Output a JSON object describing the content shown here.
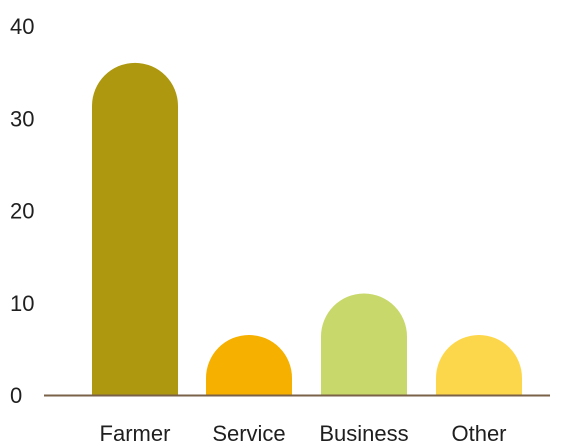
{
  "chart_data": {
    "type": "bar",
    "title": "",
    "xlabel": "",
    "ylabel": "",
    "categories": [
      "Farmer",
      "Service",
      "Business",
      "Other"
    ],
    "values": [
      36,
      6.5,
      11,
      6.5
    ],
    "colors": [
      "#ad9810",
      "#f5b000",
      "#c8d86a",
      "#fdd74b"
    ],
    "ylim": [
      0,
      40
    ],
    "yticks": [
      "0",
      "10",
      "20",
      "30",
      "40"
    ],
    "bar_shape": "rounded-top",
    "axis_color": "#7a6248",
    "grid": false,
    "legend": "none"
  }
}
